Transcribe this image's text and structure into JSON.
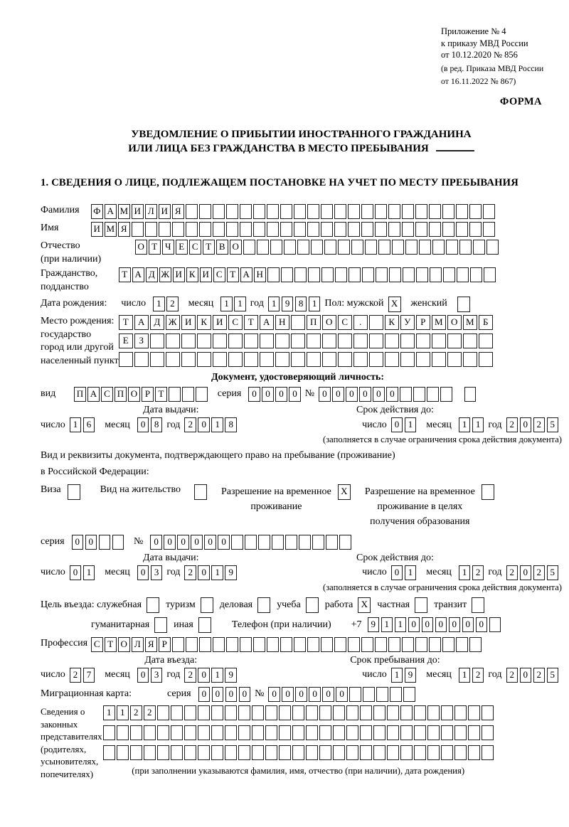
{
  "header": {
    "line1": "Приложение № 4",
    "line2": "к приказу МВД России",
    "line3": "от 10.12.2020 № 856",
    "line4": "(в ред. Приказа МВД России",
    "line5": "от 16.11.2022 № 867)",
    "form_label": "ФОРМА"
  },
  "title": {
    "line1": "УВЕДОМЛЕНИЕ О ПРИБЫТИИ ИНОСТРАННОГО ГРАЖДАНИНА",
    "line2": "ИЛИ ЛИЦА БЕЗ ГРАЖДАНСТВА В МЕСТО ПРЕБЫВАНИЯ"
  },
  "section1_heading": "1. СВЕДЕНИЯ О ЛИЦЕ, ПОДЛЕЖАЩЕМ ПОСТАНОВКЕ НА УЧЕТ ПО МЕСТУ ПРЕБЫВАНИЯ",
  "labels": {
    "surname": "Фамилия",
    "given_name": "Имя",
    "patronymic1": "Отчество",
    "patronymic2": "(при наличии)",
    "citizenship1": "Гражданство,",
    "citizenship2": "подданство",
    "birthdate": "Дата рождения:",
    "day": "число",
    "month": "месяц",
    "year": "год",
    "sex_male": "Пол: мужской",
    "sex_female": "женский",
    "birthplace1": "Место рождения:",
    "birthplace2": "государство",
    "birthplace3": "город или другой",
    "birthplace4": "населенный пункт",
    "doc_header": "Документ, удостоверяющий личность:",
    "doc_type": "вид",
    "series": "серия",
    "number_sign": "№",
    "issue_date": "Дата выдачи:",
    "valid_until": "Срок действия до:",
    "valid_note": "(заполняется в случае ограничения срока действия документа)",
    "resident_doc1": "Вид и реквизиты документа, подтверждающего право на пребывание (проживание)",
    "resident_doc2": "в Российской Федерации:",
    "visa": "Виза",
    "residence_permit": "Вид на жительство",
    "temp_res_line1": "Разрешение на временное",
    "temp_res_line2": "проживание",
    "temp_edu_line1": "Разрешение на временное",
    "temp_edu_line2": "проживание в целях",
    "temp_edu_line3": "получения образования",
    "purpose_intro": "Цель въезда: служебная",
    "purpose_tourism": "туризм",
    "purpose_business": "деловая",
    "purpose_study": "учеба",
    "purpose_work": "работа",
    "purpose_private": "частная",
    "purpose_transit": "транзит",
    "purpose_humanitarian": "гуманитарная",
    "purpose_other": "иная",
    "phone_label": "Телефон (при наличии)",
    "phone_prefix": "+7",
    "profession": "Профессия",
    "entry_date": "Дата въезда:",
    "stay_until": "Срок пребывания до:",
    "migration_card": "Миграционная карта:",
    "reps1": "Сведения о",
    "reps2": "законных",
    "reps3": "представителях",
    "reps4": "(родителях,",
    "reps5": "усыновителях,",
    "reps6": "попечителях)",
    "reps_note": "(при заполнении указываются фамилия, имя, отчество (при наличии), дата рождения)"
  },
  "fields": {
    "surname": {
      "value": "ФАМИЛИЯ",
      "count": 30
    },
    "given_name": {
      "value": "ИМЯ",
      "count": 30
    },
    "patronymic": {
      "value": "ОТЧЕСТВО",
      "count": 27
    },
    "citizenship": {
      "value": "ТАДЖИКИСТАН",
      "count": 28
    },
    "birth_day": {
      "value": "12",
      "count": 2
    },
    "birth_month": {
      "value": "11",
      "count": 2
    },
    "birth_year": {
      "value": "1981",
      "count": 4
    },
    "sex_male": {
      "value": "X",
      "count": 1
    },
    "sex_female": {
      "value": "",
      "count": 1
    },
    "birthplace_row1": {
      "value": "ТАДЖИКИСТАН ПОС. КУРМОМБ",
      "count": 24
    },
    "birthplace_row2": {
      "value": "ЕЗ",
      "count": 24
    },
    "birthplace_row3": {
      "value": "",
      "count": 24
    },
    "id_doc_type": {
      "value": "ПАСПОРТ",
      "count": 10
    },
    "id_doc_series": {
      "value": "0000",
      "count": 4
    },
    "id_doc_number": {
      "value": "000000",
      "count": 10
    },
    "id_doc_number_extra": {
      "value": "",
      "count": 1
    },
    "id_issue_day": {
      "value": "16",
      "count": 2
    },
    "id_issue_month": {
      "value": "08",
      "count": 2
    },
    "id_issue_year": {
      "value": "2018",
      "count": 4
    },
    "id_valid_day": {
      "value": "01",
      "count": 2
    },
    "id_valid_month": {
      "value": "11",
      "count": 2
    },
    "id_valid_year": {
      "value": "2025",
      "count": 4
    },
    "cb_visa": {
      "value": "",
      "count": 1
    },
    "cb_residence_permit": {
      "value": "",
      "count": 1
    },
    "cb_temp_residence": {
      "value": "X",
      "count": 1
    },
    "cb_temp_residence_edu": {
      "value": "",
      "count": 1
    },
    "res_doc_series": {
      "value": "00",
      "count": 4
    },
    "res_doc_number": {
      "value": "000000",
      "count": 15
    },
    "res_issue_day": {
      "value": "01",
      "count": 2
    },
    "res_issue_month": {
      "value": "03",
      "count": 2
    },
    "res_issue_year": {
      "value": "2019",
      "count": 4
    },
    "res_valid_day": {
      "value": "01",
      "count": 2
    },
    "res_valid_month": {
      "value": "12",
      "count": 2
    },
    "res_valid_year": {
      "value": "2025",
      "count": 4
    },
    "cb_official": {
      "value": "",
      "count": 1
    },
    "cb_tourism": {
      "value": "",
      "count": 1
    },
    "cb_business": {
      "value": "",
      "count": 1
    },
    "cb_study": {
      "value": "",
      "count": 1
    },
    "cb_work": {
      "value": "X",
      "count": 1
    },
    "cb_private": {
      "value": "",
      "count": 1
    },
    "cb_transit": {
      "value": "",
      "count": 1
    },
    "cb_humanitarian": {
      "value": "",
      "count": 1
    },
    "cb_other": {
      "value": "",
      "count": 1
    },
    "phone": {
      "value": "911000000",
      "count": 10
    },
    "profession": {
      "value": "СТОЛЯР",
      "count": 29
    },
    "entry_day": {
      "value": "27",
      "count": 2
    },
    "entry_month": {
      "value": "03",
      "count": 2
    },
    "entry_year": {
      "value": "2019",
      "count": 4
    },
    "stay_day": {
      "value": "19",
      "count": 2
    },
    "stay_month": {
      "value": "12",
      "count": 2
    },
    "stay_year": {
      "value": "2025",
      "count": 4
    },
    "mig_series": {
      "value": "0000",
      "count": 4
    },
    "mig_number": {
      "value": "000000",
      "count": 11
    },
    "rep_row1": {
      "value": "1122",
      "count": 29
    },
    "rep_row2": {
      "value": "",
      "count": 29
    },
    "rep_row3": {
      "value": "",
      "count": 29
    }
  }
}
